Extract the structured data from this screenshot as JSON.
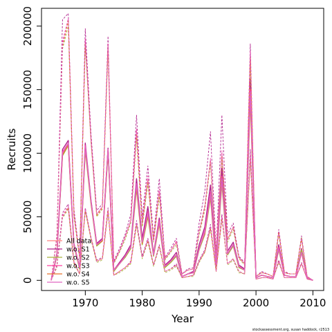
{
  "chart_data": {
    "type": "line",
    "xlabel": "Year",
    "ylabel": "Recruits",
    "xlim": [
      1962.3,
      2011.9
    ],
    "ylim": [
      -8000,
      214000
    ],
    "x_ticks": [
      "1970",
      "1980",
      "1990",
      "2000",
      "2010"
    ],
    "x_tick_values": [
      1970,
      1980,
      1990,
      2000,
      2010
    ],
    "y_ticks": [
      "0",
      "50000",
      "100000",
      "150000",
      "200000"
    ],
    "y_tick_values": [
      0,
      50000,
      100000,
      150000,
      200000
    ],
    "grid": false,
    "legend_position": "bottom-left",
    "x": [
      1964,
      1965,
      1966,
      1967,
      1968,
      1969,
      1970,
      1971,
      1972,
      1973,
      1974,
      1975,
      1976,
      1977,
      1978,
      1979,
      1980,
      1981,
      1982,
      1983,
      1984,
      1985,
      1986,
      1987,
      1988,
      1989,
      1990,
      1991,
      1992,
      1993,
      1994,
      1995,
      1996,
      1997,
      1998,
      1999,
      2000,
      2001,
      2002,
      2003,
      2004,
      2005,
      2006,
      2007,
      2008,
      2009,
      2010
    ],
    "series": [
      {
        "name": "All data",
        "color": "#FF8080",
        "median": [
          0,
          20000,
          100000,
          108000,
          28000,
          10000,
          105000,
          62000,
          28000,
          32000,
          103000,
          8000,
          13000,
          19000,
          26000,
          75000,
          30000,
          53000,
          20000,
          46000,
          11000,
          15000,
          20000,
          3000,
          5000,
          6000,
          25000,
          38000,
          68000,
          12000,
          80000,
          21000,
          28000,
          11000,
          8000,
          148000,
          2000,
          4000,
          3000,
          2000,
          25000,
          4000,
          3000,
          3000,
          22000,
          2000,
          0
        ],
        "upper": [
          0,
          33000,
          185000,
          205000,
          52000,
          18000,
          188000,
          110000,
          52000,
          58000,
          185000,
          14000,
          23000,
          34000,
          47000,
          117000,
          45000,
          80000,
          31000,
          70000,
          17000,
          23000,
          30000,
          5000,
          8000,
          9000,
          38000,
          58000,
          95000,
          19000,
          100000,
          32000,
          42000,
          18000,
          13000,
          178000,
          3000,
          6000,
          5000,
          3000,
          38000,
          6000,
          5000,
          5000,
          33000,
          3000,
          0
        ],
        "lower": [
          0,
          11000,
          50000,
          58000,
          14000,
          5000,
          56000,
          33000,
          15000,
          17000,
          55000,
          4000,
          7000,
          10000,
          14000,
          45000,
          18000,
          32000,
          12000,
          27000,
          7000,
          9000,
          12000,
          2000,
          3000,
          4000,
          15000,
          23000,
          42000,
          7000,
          50000,
          13000,
          17000,
          7000,
          5000,
          98000,
          1000,
          2000,
          2000,
          1000,
          15000,
          2000,
          2000,
          2000,
          13000,
          1000,
          0
        ]
      },
      {
        "name": "w.o. S1",
        "color": "#B0208C",
        "median": [
          0,
          21000,
          103000,
          110000,
          29000,
          10000,
          108000,
          63000,
          29000,
          33000,
          104000,
          8000,
          14000,
          20000,
          28000,
          80000,
          33000,
          58000,
          21000,
          49000,
          12000,
          16000,
          22000,
          3000,
          5000,
          7000,
          28000,
          42000,
          75000,
          13000,
          88000,
          23000,
          30000,
          12000,
          9000,
          158000,
          2000,
          4000,
          3000,
          2000,
          28000,
          4000,
          3000,
          3000,
          25000,
          2000,
          0
        ],
        "upper": [
          0,
          35000,
          205000,
          210000,
          56000,
          19000,
          198000,
          115000,
          55000,
          60000,
          192000,
          15000,
          25000,
          36000,
          52000,
          130000,
          50000,
          90000,
          34000,
          80000,
          18000,
          25000,
          33000,
          5000,
          9000,
          10000,
          45000,
          70000,
          117000,
          22000,
          130000,
          36000,
          45000,
          19000,
          14000,
          186000,
          3000,
          7000,
          5000,
          3000,
          40000,
          7000,
          5000,
          5000,
          35000,
          3000,
          0
        ],
        "lower": [
          0,
          12000,
          53000,
          60000,
          15000,
          5000,
          57000,
          34000,
          16000,
          18000,
          57000,
          4000,
          7000,
          10000,
          15000,
          47000,
          19000,
          33000,
          12000,
          28000,
          7000,
          9000,
          13000,
          2000,
          3000,
          4000,
          16000,
          24000,
          44000,
          8000,
          52000,
          13000,
          17000,
          7000,
          5000,
          103000,
          1000,
          2000,
          2000,
          1000,
          16000,
          2000,
          2000,
          2000,
          14000,
          1000,
          0
        ]
      },
      {
        "name": "w.o. S2",
        "color": "#A6B23A",
        "median": [
          0,
          19000,
          98000,
          106000,
          27000,
          9000,
          102000,
          60000,
          27000,
          31000,
          100000,
          7000,
          13000,
          18000,
          25000,
          72000,
          28000,
          50000,
          19000,
          44000,
          10000,
          14000,
          19000,
          3000,
          5000,
          6000,
          24000,
          36000,
          65000,
          11000,
          76000,
          20000,
          27000,
          10000,
          8000,
          142000,
          2000,
          4000,
          3000,
          2000,
          24000,
          4000,
          3000,
          3000,
          24000,
          2000,
          0
        ],
        "upper": [
          0,
          32000,
          182000,
          200000,
          50000,
          17000,
          185000,
          108000,
          50000,
          56000,
          180000,
          13000,
          22000,
          32000,
          45000,
          112000,
          42000,
          76000,
          30000,
          66000,
          16000,
          22000,
          28000,
          5000,
          8000,
          9000,
          36000,
          55000,
          92000,
          18000,
          96000,
          30000,
          40000,
          17000,
          12000,
          170000,
          3000,
          6000,
          5000,
          3000,
          36000,
          6000,
          5000,
          5000,
          34000,
          3000,
          0
        ],
        "lower": [
          0,
          10000,
          49000,
          56000,
          13000,
          5000,
          54000,
          32000,
          14000,
          16000,
          53000,
          4000,
          6000,
          9000,
          13000,
          43000,
          17000,
          30000,
          11000,
          26000,
          6000,
          8000,
          11000,
          2000,
          3000,
          3000,
          14000,
          22000,
          40000,
          7000,
          48000,
          12000,
          16000,
          6000,
          5000,
          94000,
          1000,
          2000,
          2000,
          1000,
          14000,
          2000,
          2000,
          2000,
          13000,
          1000,
          0
        ]
      },
      {
        "name": "w.o. S3",
        "color": "#FF40A0",
        "median": [
          0,
          20000,
          101000,
          108000,
          28000,
          10000,
          106000,
          62000,
          28000,
          32000,
          103000,
          8000,
          13000,
          19000,
          26000,
          76000,
          30000,
          54000,
          20000,
          47000,
          11000,
          15000,
          20000,
          3000,
          5000,
          6000,
          25000,
          39000,
          69000,
          12000,
          82000,
          21000,
          28000,
          11000,
          8000,
          150000,
          2000,
          4000,
          3000,
          2000,
          26000,
          4000,
          3000,
          3000,
          22000,
          2000,
          0
        ],
        "upper": [
          0,
          34000,
          188000,
          206000,
          53000,
          18000,
          190000,
          111000,
          52000,
          58000,
          186000,
          14000,
          23000,
          34000,
          47000,
          119000,
          46000,
          82000,
          31000,
          72000,
          17000,
          23000,
          31000,
          5000,
          8000,
          9000,
          39000,
          59000,
          96000,
          19000,
          102000,
          32000,
          42000,
          18000,
          13000,
          180000,
          3000,
          6000,
          5000,
          3000,
          38000,
          6000,
          5000,
          5000,
          33000,
          3000,
          0
        ],
        "lower": [
          0,
          11000,
          51000,
          58000,
          14000,
          5000,
          56000,
          33000,
          15000,
          17000,
          55000,
          4000,
          7000,
          10000,
          14000,
          45000,
          18000,
          32000,
          12000,
          27000,
          7000,
          9000,
          12000,
          2000,
          3000,
          4000,
          15000,
          23000,
          42000,
          7000,
          50000,
          13000,
          17000,
          7000,
          5000,
          99000,
          1000,
          2000,
          2000,
          1000,
          15000,
          2000,
          2000,
          2000,
          13000,
          1000,
          0
        ]
      },
      {
        "name": "w.o. S4",
        "color": "#E8702A",
        "median": [
          0,
          20000,
          99000,
          107000,
          28000,
          10000,
          104000,
          61000,
          28000,
          31000,
          102000,
          8000,
          13000,
          19000,
          26000,
          74000,
          29000,
          52000,
          20000,
          45000,
          11000,
          15000,
          20000,
          3000,
          5000,
          6000,
          25000,
          37000,
          67000,
          12000,
          79000,
          21000,
          28000,
          11000,
          8000,
          146000,
          2000,
          4000,
          3000,
          2000,
          25000,
          4000,
          3000,
          3000,
          22000,
          2000,
          0
        ],
        "upper": [
          0,
          33000,
          184000,
          204000,
          52000,
          18000,
          187000,
          109000,
          51000,
          57000,
          184000,
          14000,
          23000,
          34000,
          47000,
          116000,
          44000,
          79000,
          31000,
          69000,
          17000,
          23000,
          30000,
          5000,
          8000,
          9000,
          38000,
          57000,
          94000,
          19000,
          99000,
          32000,
          42000,
          18000,
          13000,
          176000,
          3000,
          6000,
          5000,
          3000,
          38000,
          6000,
          5000,
          5000,
          32000,
          3000,
          0
        ],
        "lower": [
          0,
          11000,
          50000,
          57000,
          14000,
          5000,
          55000,
          33000,
          15000,
          17000,
          55000,
          4000,
          7000,
          10000,
          14000,
          44000,
          18000,
          31000,
          12000,
          27000,
          7000,
          9000,
          12000,
          2000,
          3000,
          4000,
          15000,
          22000,
          41000,
          7000,
          49000,
          13000,
          17000,
          7000,
          5000,
          97000,
          1000,
          2000,
          2000,
          1000,
          15000,
          2000,
          2000,
          2000,
          13000,
          1000,
          0
        ]
      },
      {
        "name": "w.o. S5",
        "color": "#E066C0",
        "median": [
          0,
          20000,
          100000,
          108000,
          28000,
          10000,
          105000,
          62000,
          28000,
          32000,
          103000,
          8000,
          13000,
          19000,
          26000,
          76000,
          30000,
          53000,
          20000,
          46000,
          11000,
          15000,
          20000,
          3000,
          5000,
          6000,
          25000,
          38000,
          68000,
          12000,
          80000,
          21000,
          28000,
          11000,
          8000,
          148000,
          2000,
          4000,
          3000,
          2000,
          25000,
          4000,
          3000,
          3000,
          22000,
          2000,
          0
        ],
        "upper": [
          0,
          33000,
          186000,
          206000,
          52000,
          18000,
          189000,
          110000,
          52000,
          58000,
          185000,
          14000,
          23000,
          34000,
          47000,
          118000,
          45000,
          80000,
          31000,
          70000,
          17000,
          23000,
          30000,
          5000,
          8000,
          9000,
          38000,
          58000,
          95000,
          19000,
          101000,
          32000,
          42000,
          18000,
          13000,
          179000,
          3000,
          6000,
          5000,
          3000,
          38000,
          6000,
          5000,
          5000,
          33000,
          3000,
          0
        ],
        "lower": [
          0,
          11000,
          50000,
          58000,
          14000,
          5000,
          56000,
          33000,
          15000,
          17000,
          55000,
          4000,
          7000,
          10000,
          14000,
          45000,
          18000,
          32000,
          12000,
          27000,
          7000,
          9000,
          12000,
          2000,
          3000,
          4000,
          15000,
          23000,
          42000,
          7000,
          50000,
          13000,
          17000,
          7000,
          5000,
          98000,
          1000,
          2000,
          2000,
          1000,
          15000,
          2000,
          2000,
          2000,
          13000,
          1000,
          0
        ]
      }
    ]
  },
  "footer": {
    "credit": "stockassessment.org, susan haddock, r2513"
  }
}
